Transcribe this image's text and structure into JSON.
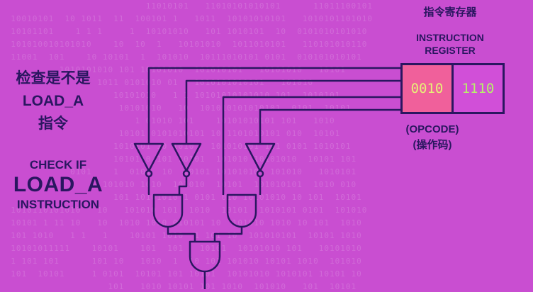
{
  "title": {
    "cn_line1": "检查是不是",
    "cn_line2": "LOAD_A",
    "cn_line3": "指令",
    "en_line1": "CHECK IF",
    "en_line2": "LOAD_A",
    "en_line3": "INSTRUCTION"
  },
  "register": {
    "title_cn": "指令寄存器",
    "title_en_line1": "INSTRUCTION",
    "title_en_line2": "REGISTER",
    "opcode_bits": "0010",
    "address_bits": "1110",
    "opcode_label_en": "(OPCODE)",
    "opcode_label_cn": "(操作码)"
  },
  "background": {
    "binary_rows": [
      "                           11010101   11010101010101      11011100101",
      "  10010101  10 1011  11  100101 1   1011  10101010101   1010101101010",
      "  10101101    1 1 1     1  10101010   101 1010101  10  0101010101010",
      "  101010010101010    10  10  1   10101010  1011010101   110101010110",
      "  11001  101    10 10101  1  101010  10111010101 0101  010101010101",
      "           1010101010 101 10101010  101010101   10101010   10101",
      "                  1011 0101010 01   1010101010101   101010",
      "                     10101010   1 1 10101010101010 101  1010101",
      "                      10101010   10  101010101010101  0101  10101",
      "                         1 01010 101    10101010101 101   1010",
      "                      10101 0101010101 10 1101010101 010  10101",
      "                     1010101 10 1010   101010101 101 0101 1010101",
      "                     10101 0 101 10101  101010 10101010  10101 101",
      "             0101    1  0101  10  10101 10101010  101010   1010101",
      "                   101010 1010  101010  10101  101010101  1010 010",
      "                     101 10101010 1 0101 010 10101010 10 101  10101",
      "  1010110101010   10   101010 101  1010  10101  1010101 0101  101010",
      "  10101 1 11 10   10  1010 1010 010101 10  101010 1010 10 101  1010",
      "  101 1010   1 1   1    10101 1010  1 101 10  101010101  10101 1010",
      "  10101011111    10101    101  101   10101  10101010 101   10101010",
      "  1 101 101      101 10   1010  1  10 101 101010 10101 1010  101010",
      "  101  10101     1 0101  10101 101 10101  10101010 1010101 10101 10",
      "                    101   1010 10101 101 1010  101010   101  10101"
    ],
    "color": "#ffffff"
  },
  "colors": {
    "background": "#c94ed1",
    "ink": "#2a1660",
    "opcode_fill": "#f0609b",
    "opcode_text": "#e8f078",
    "address_text": "#b8f06a"
  }
}
